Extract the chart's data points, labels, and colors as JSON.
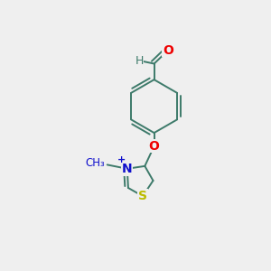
{
  "background_color": "#efefef",
  "bond_color": "#3d7a6a",
  "atom_colors": {
    "O": "#ee0000",
    "N": "#1010cc",
    "S": "#bbbb00",
    "H": "#3d7a6a",
    "plus": "#1010cc"
  },
  "bond_width": 1.4,
  "figsize": [
    3.0,
    3.0
  ],
  "dpi": 100
}
